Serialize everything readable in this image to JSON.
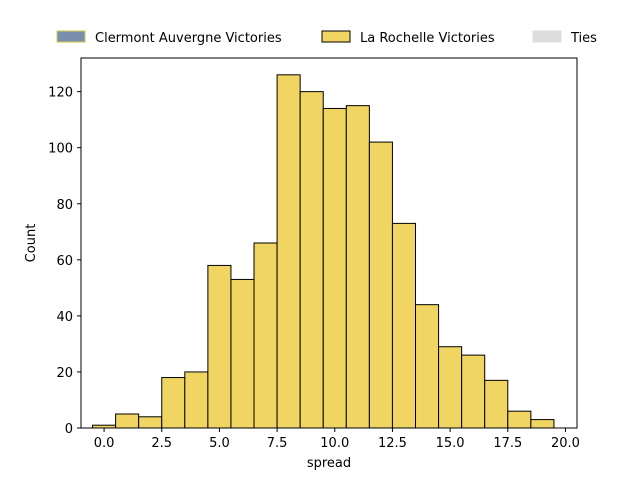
{
  "chart_data": {
    "type": "bar",
    "title": "",
    "xlabel": "spread",
    "ylabel": "Count",
    "xlim": [
      -1.0,
      20.5
    ],
    "ylim": [
      0,
      132
    ],
    "x_ticks": [
      0.0,
      2.5,
      5.0,
      7.5,
      10.0,
      12.5,
      15.0,
      17.5,
      20.0
    ],
    "x_tick_labels": [
      "0.0",
      "2.5",
      "5.0",
      "7.5",
      "10.0",
      "12.5",
      "15.0",
      "17.5",
      "20.0"
    ],
    "y_ticks": [
      0,
      20,
      40,
      60,
      80,
      100,
      120
    ],
    "y_tick_labels": [
      "0",
      "20",
      "40",
      "60",
      "80",
      "100",
      "120"
    ],
    "grid": false,
    "legend_placement": "top",
    "series": [
      {
        "name": "Clermont Auvergne Victories",
        "color": "#7a8fad",
        "edge": "#d4c84a",
        "bins": []
      },
      {
        "name": "La Rochelle Victories",
        "color": "#f0d562",
        "edge": "#000000",
        "bins": [
          {
            "x0": -0.5,
            "x1": 0.5,
            "count": 1
          },
          {
            "x0": 0.5,
            "x1": 1.5,
            "count": 5
          },
          {
            "x0": 1.5,
            "x1": 2.5,
            "count": 4
          },
          {
            "x0": 2.5,
            "x1": 3.5,
            "count": 18
          },
          {
            "x0": 3.5,
            "x1": 4.5,
            "count": 20
          },
          {
            "x0": 4.5,
            "x1": 5.5,
            "count": 58
          },
          {
            "x0": 5.5,
            "x1": 6.5,
            "count": 53
          },
          {
            "x0": 6.5,
            "x1": 7.5,
            "count": 66
          },
          {
            "x0": 7.5,
            "x1": 8.5,
            "count": 126
          },
          {
            "x0": 8.5,
            "x1": 9.5,
            "count": 120
          },
          {
            "x0": 9.5,
            "x1": 10.5,
            "count": 114
          },
          {
            "x0": 10.5,
            "x1": 11.5,
            "count": 115
          },
          {
            "x0": 11.5,
            "x1": 12.5,
            "count": 102
          },
          {
            "x0": 12.5,
            "x1": 13.5,
            "count": 73
          },
          {
            "x0": 13.5,
            "x1": 14.5,
            "count": 44
          },
          {
            "x0": 14.5,
            "x1": 15.5,
            "count": 29
          },
          {
            "x0": 15.5,
            "x1": 16.5,
            "count": 26
          },
          {
            "x0": 16.5,
            "x1": 17.5,
            "count": 17
          },
          {
            "x0": 17.5,
            "x1": 18.5,
            "count": 6
          },
          {
            "x0": 18.5,
            "x1": 19.5,
            "count": 3
          }
        ]
      },
      {
        "name": "Ties",
        "color": "#dddddd",
        "edge": "#dddddd",
        "bins": []
      }
    ]
  }
}
